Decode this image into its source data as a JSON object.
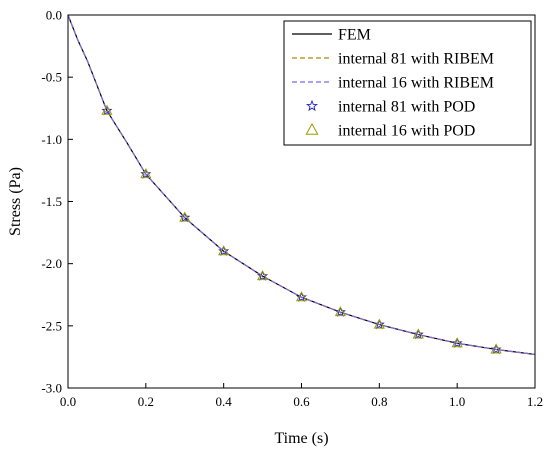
{
  "chart_data": {
    "type": "line",
    "title": "",
    "xlabel": "Time (s)",
    "ylabel": "Stress (Pa)",
    "xlim": [
      0.0,
      1.2
    ],
    "ylim": [
      -3.0,
      0.0
    ],
    "x_ticks": [
      "0.0",
      "0.2",
      "0.4",
      "0.6",
      "0.8",
      "1.0",
      "1.2"
    ],
    "y_ticks": [
      "0.0",
      "-0.5",
      "-1.0",
      "-1.5",
      "-2.0",
      "-2.5",
      "-3.0"
    ],
    "x_tick_values": [
      0.0,
      0.2,
      0.4,
      0.6,
      0.8,
      1.0,
      1.2
    ],
    "y_tick_values": [
      0.0,
      -0.5,
      -1.0,
      -1.5,
      -2.0,
      -2.5,
      -3.0
    ],
    "grid": false,
    "legend_position": "top-right",
    "series": [
      {
        "name": "FEM",
        "style": "solid-line",
        "color": "#000000",
        "x": [
          0.0,
          0.025,
          0.05,
          0.1,
          0.15,
          0.2,
          0.3,
          0.4,
          0.5,
          0.6,
          0.7,
          0.8,
          0.9,
          1.0,
          1.1,
          1.2
        ],
        "y": [
          0.0,
          -0.2,
          -0.37,
          -0.77,
          -1.02,
          -1.28,
          -1.63,
          -1.9,
          -2.1,
          -2.27,
          -2.39,
          -2.49,
          -2.57,
          -2.64,
          -2.69,
          -2.73
        ]
      },
      {
        "name": "internal 81 with RIBEM",
        "style": "dashed-line",
        "color": "#b8860b",
        "x": [
          0.0,
          0.025,
          0.05,
          0.1,
          0.15,
          0.2,
          0.3,
          0.4,
          0.5,
          0.6,
          0.7,
          0.8,
          0.9,
          1.0,
          1.1,
          1.2
        ],
        "y": [
          0.0,
          -0.2,
          -0.37,
          -0.77,
          -1.02,
          -1.28,
          -1.63,
          -1.9,
          -2.1,
          -2.27,
          -2.39,
          -2.49,
          -2.57,
          -2.64,
          -2.69,
          -2.73
        ]
      },
      {
        "name": "internal 16 with RIBEM",
        "style": "dashed-line",
        "color": "#7b68ee",
        "x": [
          0.0,
          0.025,
          0.05,
          0.1,
          0.15,
          0.2,
          0.3,
          0.4,
          0.5,
          0.6,
          0.7,
          0.8,
          0.9,
          1.0,
          1.1,
          1.2
        ],
        "y": [
          0.0,
          -0.2,
          -0.37,
          -0.77,
          -1.02,
          -1.28,
          -1.63,
          -1.9,
          -2.1,
          -2.27,
          -2.39,
          -2.49,
          -2.57,
          -2.64,
          -2.69,
          -2.73
        ]
      },
      {
        "name": "internal 81 with POD",
        "style": "star-markers",
        "color": "#2020c0",
        "x": [
          0.1,
          0.2,
          0.3,
          0.4,
          0.5,
          0.6,
          0.7,
          0.8,
          0.9,
          1.0,
          1.1
        ],
        "y": [
          -0.77,
          -1.28,
          -1.63,
          -1.9,
          -2.1,
          -2.27,
          -2.39,
          -2.49,
          -2.57,
          -2.64,
          -2.69
        ]
      },
      {
        "name": "internal 16 with POD",
        "style": "triangle-markers",
        "color": "#9a9a00",
        "x": [
          0.1,
          0.2,
          0.3,
          0.4,
          0.5,
          0.6,
          0.7,
          0.8,
          0.9,
          1.0,
          1.1
        ],
        "y": [
          -0.77,
          -1.28,
          -1.63,
          -1.9,
          -2.1,
          -2.27,
          -2.39,
          -2.49,
          -2.57,
          -2.64,
          -2.69
        ]
      }
    ]
  }
}
